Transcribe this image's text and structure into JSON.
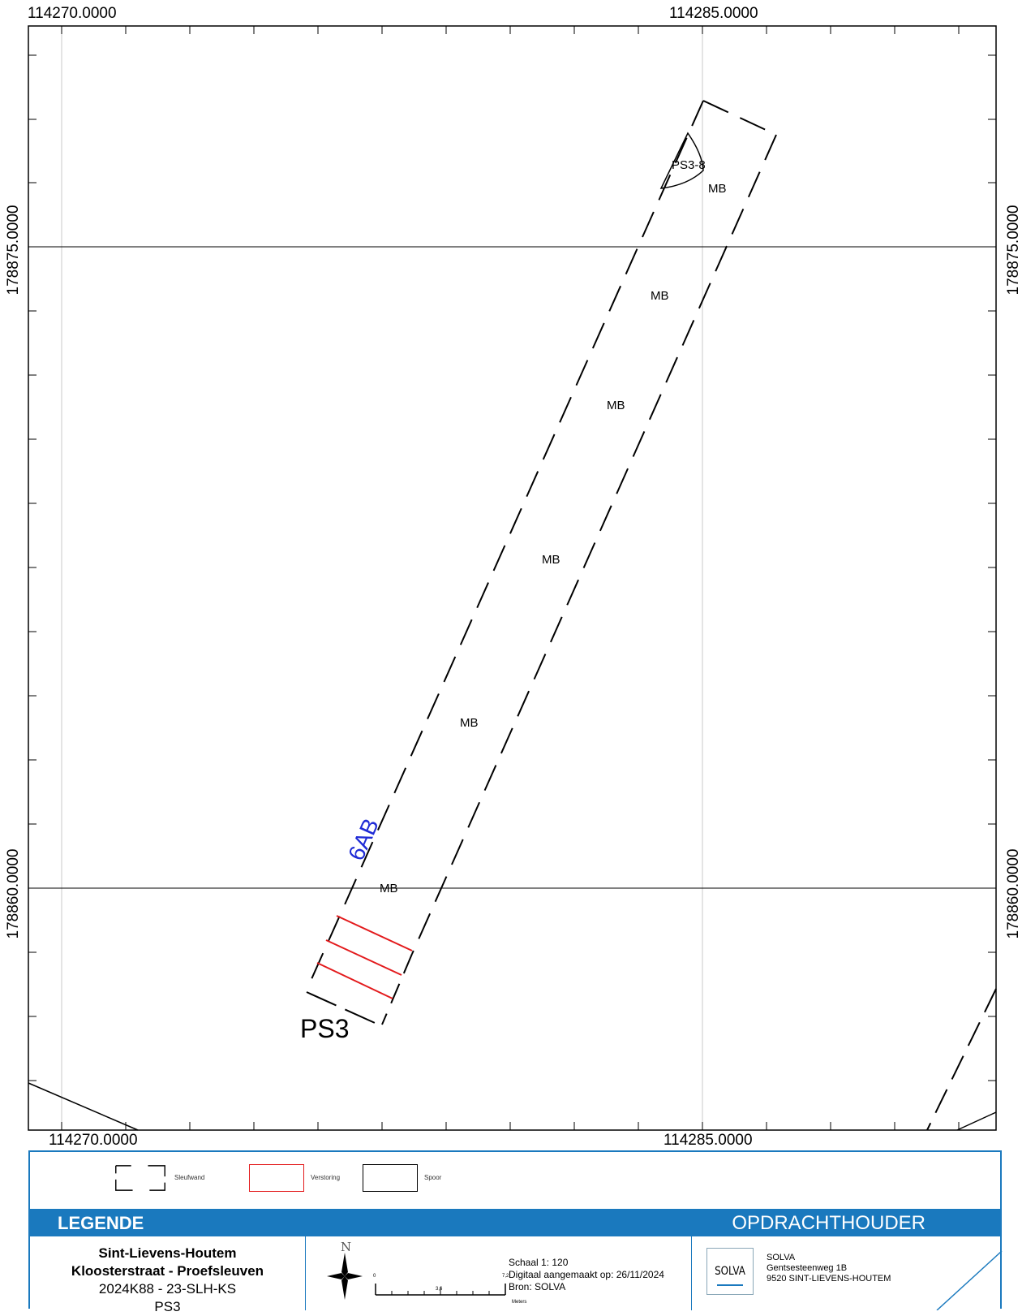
{
  "map": {
    "top_x_labels": [
      "114270.0000",
      "114285.0000"
    ],
    "bottom_x_labels": [
      "114270.0000",
      "114285.0000"
    ],
    "left_y_labels": [
      "178875.0000",
      "178860.0000"
    ],
    "right_y_labels": [
      "178875.0000",
      "178860.0000"
    ],
    "feature_label": "PS3-8",
    "fill_labels": [
      "MB",
      "MB",
      "MB",
      "MB",
      "MB",
      "MB"
    ],
    "trench_name": "PS3",
    "profile_label": "6AB",
    "colors": {
      "frame": "#000000",
      "grid": "#c8c8c8",
      "reinforcement": "#e31a1c",
      "profile": "#1f2bd6"
    }
  },
  "legend": {
    "items": [
      {
        "label": "Sleufwand",
        "symbol": "dashed-box"
      },
      {
        "label": "Verstoring",
        "symbol": "red-box"
      },
      {
        "label": "Spoor",
        "symbol": "black-box"
      }
    ],
    "band_left": "LEGENDE",
    "band_right": "OPDRACHTHOUDER",
    "accent": "#1a79be"
  },
  "project": {
    "line1": "Sint-Lievens-Houtem",
    "line2": "Kloosterstraat - Proefsleuven",
    "line3": "2024K88 - 23-SLH-KS",
    "line4": "PS3"
  },
  "scale_info": {
    "scale": "Schaal 1: 120",
    "digital": "Digitaal aangemaakt op: 26/11/2024",
    "source": "Bron: SOLVA",
    "bar_ticks": [
      "0",
      "3,6",
      "7,2"
    ],
    "bar_unit": "Meters",
    "north": "N",
    "north_icon": "compass-rose-icon"
  },
  "contractor": {
    "logo": "SOLVA",
    "name": "SOLVA",
    "street": "Gentsesteenweg 1B",
    "city": "9520 SINT-LIEVENS-HOUTEM"
  }
}
